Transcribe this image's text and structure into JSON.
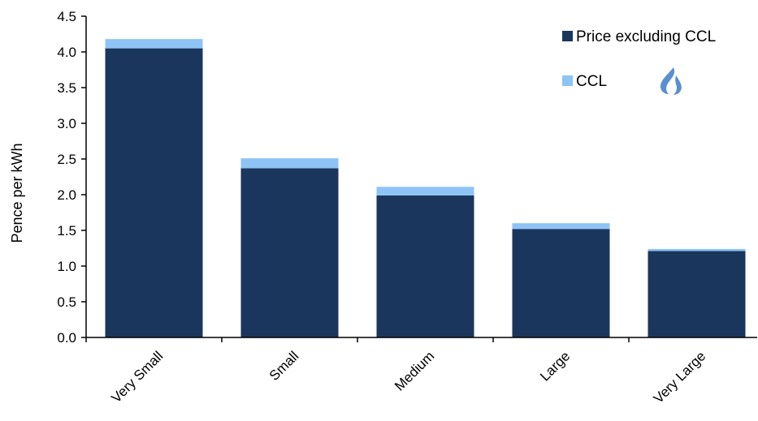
{
  "chart_data": {
    "type": "bar",
    "stacked": true,
    "title": "",
    "xlabel": "",
    "ylabel": "Pence per kWh",
    "ylim": [
      0,
      4.5
    ],
    "ytick_step": 0.5,
    "grid": false,
    "legend_position": "top-right",
    "categories": [
      "Very Small",
      "Small",
      "Medium",
      "Large",
      "Very Large"
    ],
    "series": [
      {
        "name": "Price excluding CCL",
        "color": "#1b365d",
        "values": [
          4.05,
          2.37,
          1.99,
          1.52,
          1.21
        ]
      },
      {
        "name": "CCL",
        "color": "#8ec3f5",
        "values": [
          0.13,
          0.14,
          0.12,
          0.08,
          0.03
        ]
      }
    ],
    "icon": "gas-flame-icon",
    "icon_color": "#5a8fd0"
  }
}
